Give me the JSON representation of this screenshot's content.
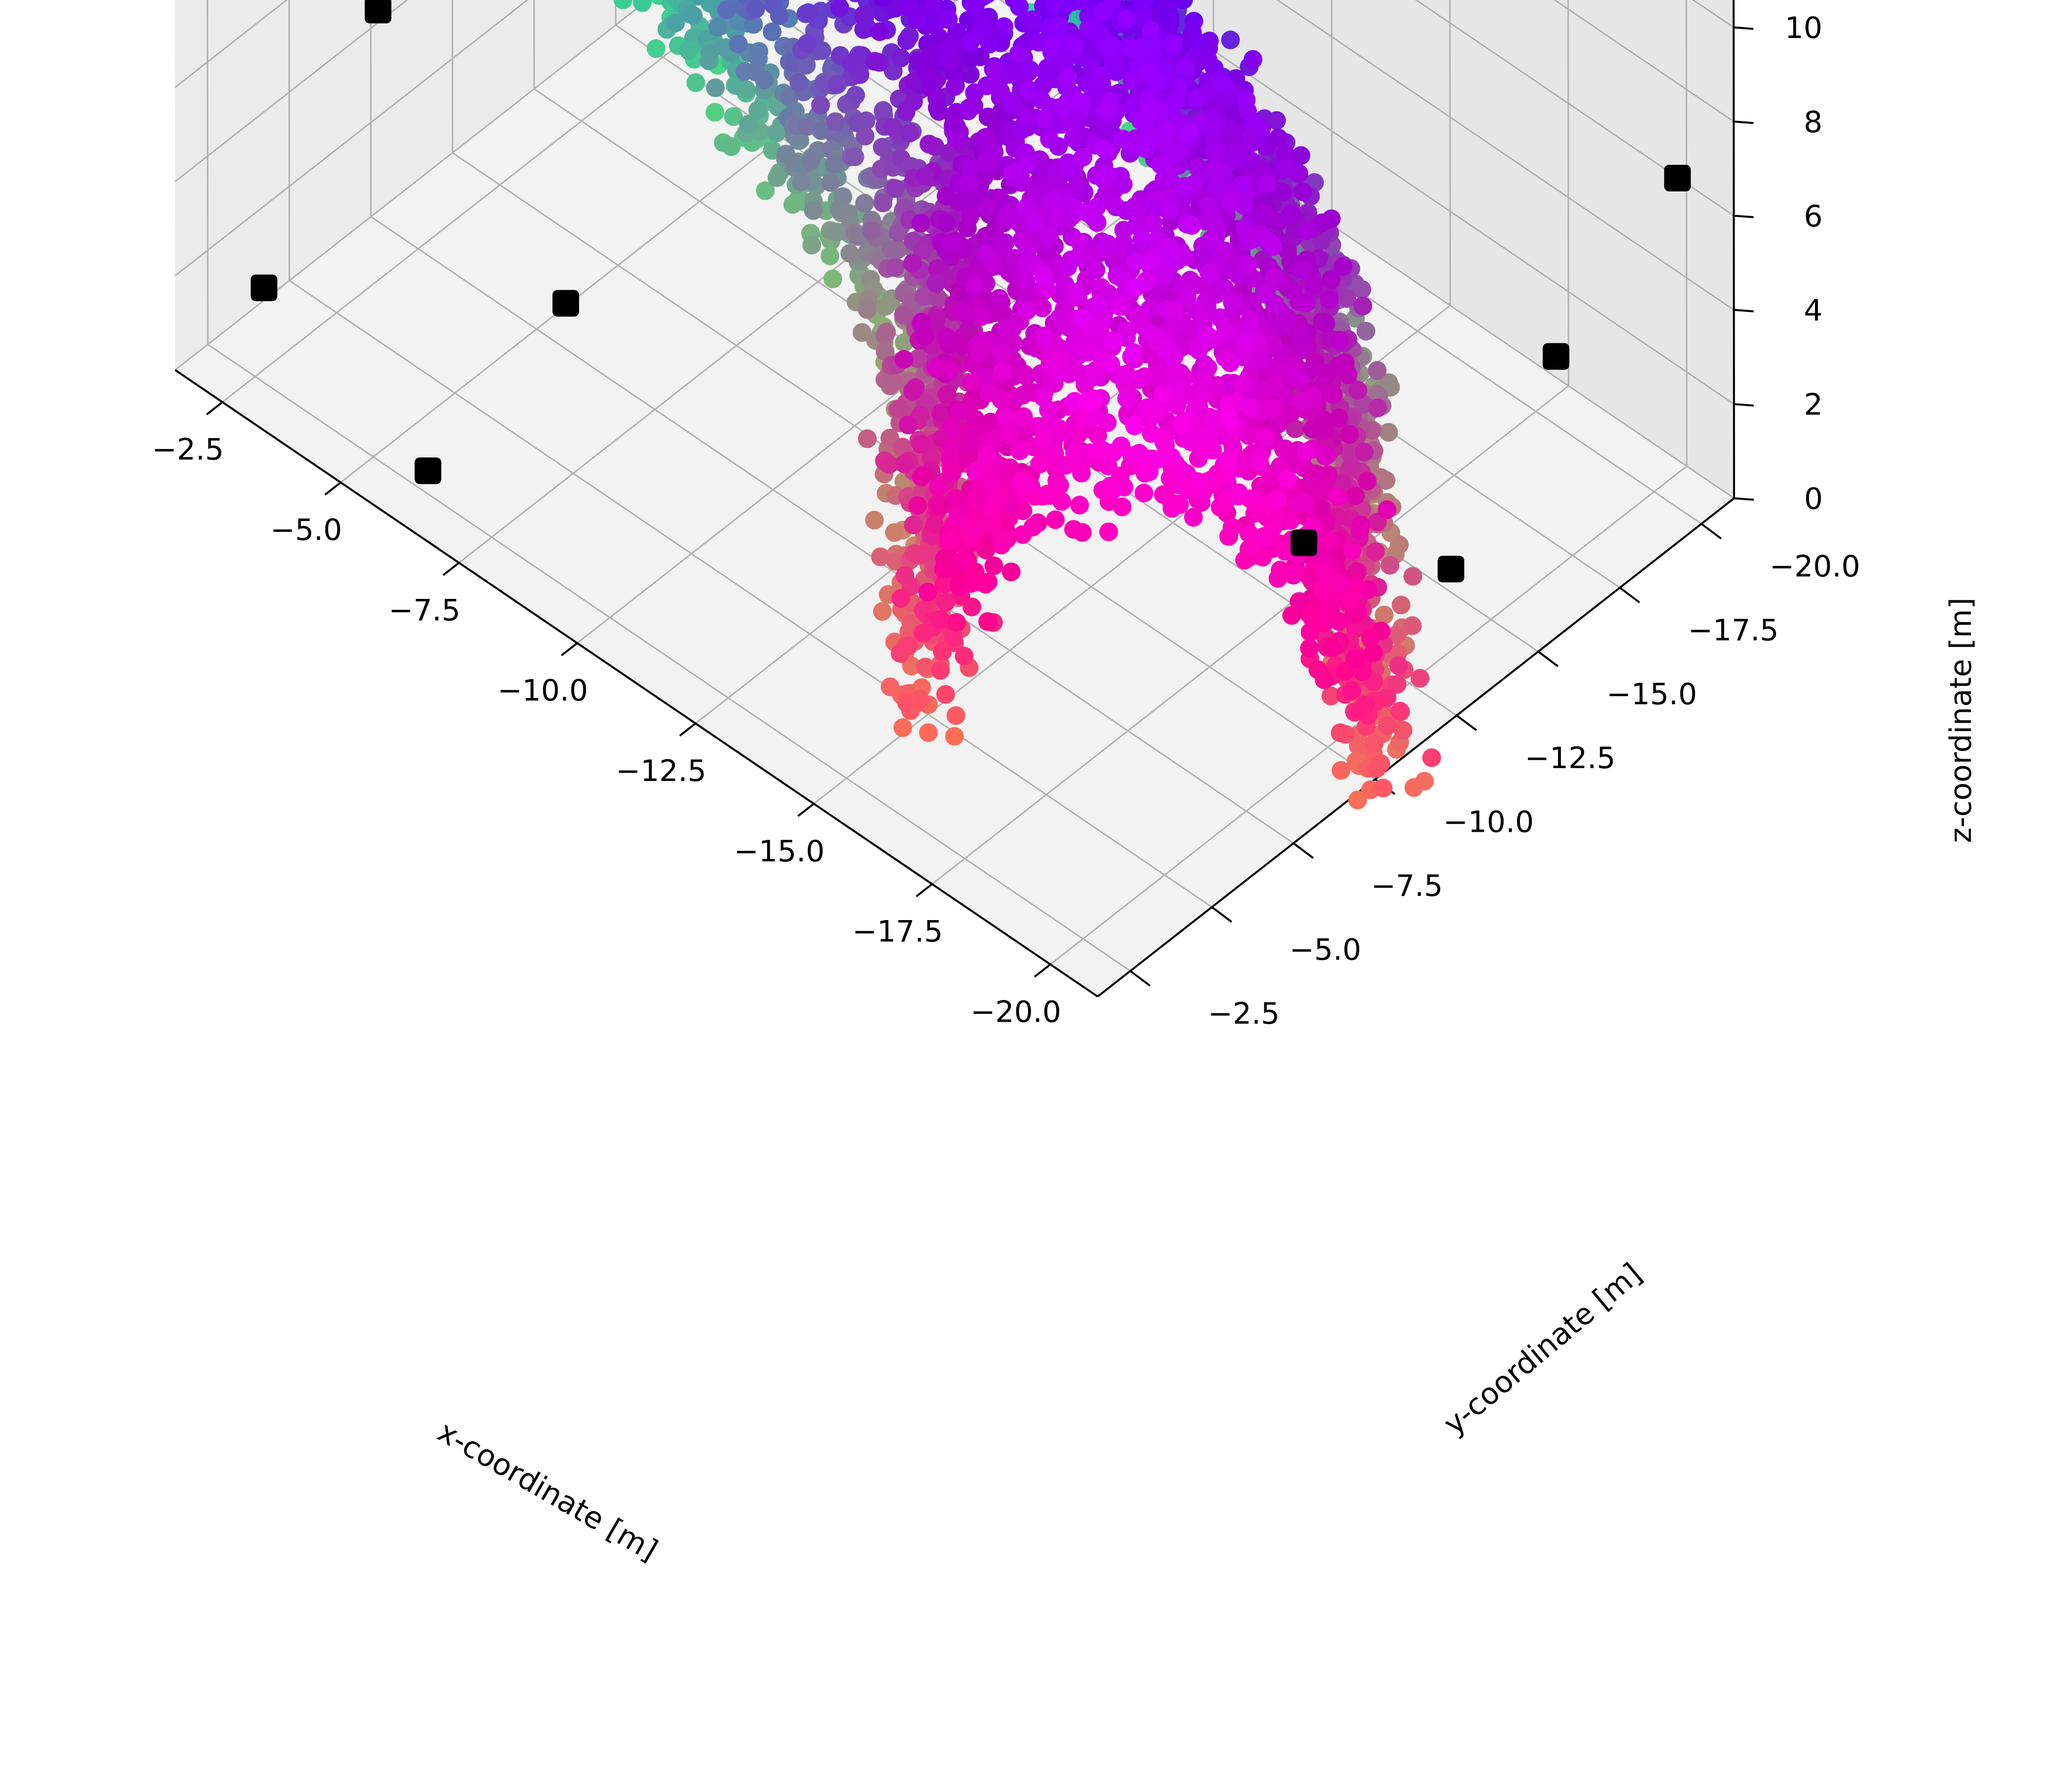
{
  "chart_data": {
    "type": "scatter3d",
    "xlabel": "x-coordinate [m]",
    "ylabel": "y-coordinate [m]",
    "zlabel": "z-coordinate [m]",
    "xlim": [
      -1.5,
      -21
    ],
    "ylim": [
      -1.5,
      -21
    ],
    "zlim": [
      0,
      11
    ],
    "x_ticks": [
      {
        "value": -2.5,
        "label": "−2.5"
      },
      {
        "value": -5.0,
        "label": "−5.0"
      },
      {
        "value": -7.5,
        "label": "−7.5"
      },
      {
        "value": -10.0,
        "label": "−10.0"
      },
      {
        "value": -12.5,
        "label": "−12.5"
      },
      {
        "value": -15.0,
        "label": "−15.0"
      },
      {
        "value": -17.5,
        "label": "−17.5"
      },
      {
        "value": -20.0,
        "label": "−20.0"
      }
    ],
    "y_ticks": [
      {
        "value": -2.5,
        "label": "−2.5"
      },
      {
        "value": -5.0,
        "label": "−5.0"
      },
      {
        "value": -7.5,
        "label": "−7.5"
      },
      {
        "value": -10.0,
        "label": "−10.0"
      },
      {
        "value": -12.5,
        "label": "−12.5"
      },
      {
        "value": -15.0,
        "label": "−15.0"
      },
      {
        "value": -17.5,
        "label": "−17.5"
      },
      {
        "value": -20.0,
        "label": "−20.0"
      }
    ],
    "z_ticks": [
      {
        "value": 0,
        "label": "0"
      },
      {
        "value": 2,
        "label": "2"
      },
      {
        "value": 4,
        "label": "4"
      },
      {
        "value": 6,
        "label": "6"
      },
      {
        "value": 8,
        "label": "8"
      },
      {
        "value": 10,
        "label": "10"
      }
    ],
    "grid": true,
    "pane_color": "#f2f2f2",
    "marker_color": "#000000",
    "markers": [
      {
        "x": -2.0,
        "y": -7.0,
        "z": 5.0
      },
      {
        "x": -2.0,
        "y": -3.5,
        "z": 1.0
      },
      {
        "x": -7.0,
        "y": -5.5,
        "z": 3.0
      },
      {
        "x": -6.5,
        "y": -2.0,
        "z": 1.0
      },
      {
        "x": -19.5,
        "y": -10.0,
        "z": 4.0
      },
      {
        "x": -20.0,
        "y": -17.0,
        "z": 4.5
      },
      {
        "x": -20.5,
        "y": -20.0,
        "z": 7.0
      },
      {
        "x": -19.5,
        "y": -14.5,
        "z": 1.0
      }
    ],
    "point_cloud": {
      "shape": "arch",
      "count": 5000,
      "x_range": [
        -3,
        -20
      ],
      "y_range": [
        -5,
        -20
      ],
      "z_range": [
        0,
        10
      ],
      "color_scheme": "rgb-by-position"
    }
  }
}
